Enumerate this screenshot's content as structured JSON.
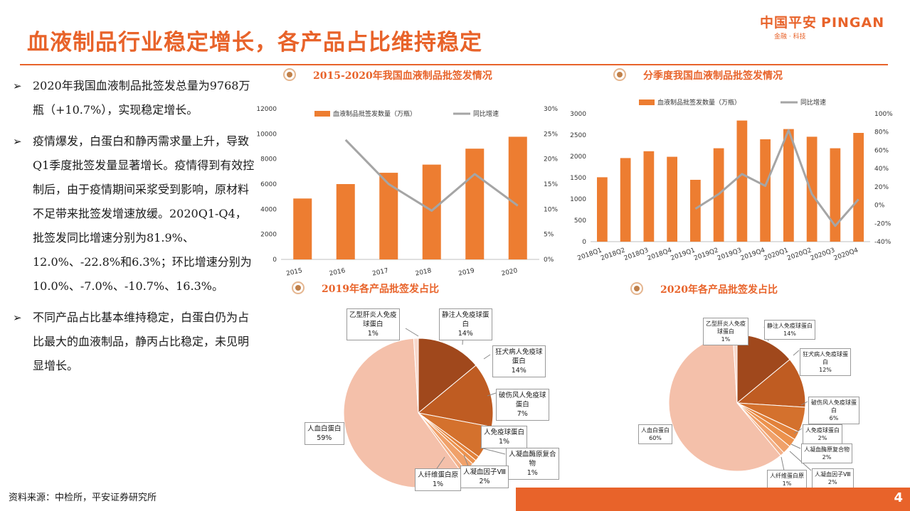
{
  "header": {
    "title": "血液制品行业稳定增长，各产品占比维持稳定",
    "logo_cn": "中国平安",
    "logo_en": "PINGAN",
    "logo_sub": "金融 · 科技"
  },
  "bullets": [
    "2020年我国血液制品批签发总量为9768万瓶（+10.7%），实现稳定增长。",
    "疫情爆发，白蛋白和静丙需求量上升，导致Q1季度批签发量显著增长。疫情得到有效控制后，由于疫情期间采浆受到影响，原材料不足带来批签发增速放缓。2020Q1-Q4，批签发同比增速分别为81.9%、12.0%、-22.8%和6.3%；环比增速分别为10.0%、-7.0%、-10.7%、16.3%。",
    "不同产品占比基本维持稳定，白蛋白仍为占比最大的血液制品，静丙占比稳定，未见明显增长。"
  ],
  "bullet_marker": "➢",
  "footer": {
    "source": "资料来源：中检所，平安证券研究所",
    "page": "4"
  },
  "colors": {
    "accent": "#e8632a",
    "bar": "#ed7d31",
    "line": "#a5a5a5"
  },
  "chart_data": [
    {
      "type": "bar",
      "title": "2015-2020年我国血液制品批签发情况",
      "categories": [
        "2015",
        "2016",
        "2017",
        "2018",
        "2019",
        "2020"
      ],
      "series": [
        {
          "name": "血液制品批签发数量（万瓶）",
          "axis": "left",
          "kind": "bar",
          "values": [
            4850,
            6000,
            6900,
            7550,
            8820,
            9768
          ]
        },
        {
          "name": "同比增速",
          "axis": "right",
          "kind": "line",
          "values": [
            null,
            23.8,
            15.0,
            9.7,
            17.0,
            10.7
          ]
        }
      ],
      "y_left": {
        "range": [
          0,
          12000
        ],
        "ticks": [
          "0",
          "2000",
          "4000",
          "6000",
          "8000",
          "10000",
          "12000"
        ]
      },
      "y_right": {
        "range": [
          0,
          30
        ],
        "ticks": [
          "0%",
          "5%",
          "10%",
          "15%",
          "20%",
          "25%",
          "30%"
        ]
      },
      "legend": "top"
    },
    {
      "type": "bar",
      "title": "分季度我国血液制品批签发情况",
      "categories": [
        "2018Q1",
        "2018Q2",
        "2018Q3",
        "2018Q4",
        "2019Q1",
        "2019Q2",
        "2019Q3",
        "2019Q4",
        "2020Q1",
        "2020Q2",
        "2020Q3",
        "2020Q4"
      ],
      "series": [
        {
          "name": "血液制品批签发数量（万瓶）",
          "axis": "left",
          "kind": "bar",
          "values": [
            1510,
            1960,
            2120,
            1990,
            1450,
            2190,
            2840,
            2400,
            2640,
            2460,
            2190,
            2550
          ]
        },
        {
          "name": "同比增速",
          "axis": "right",
          "kind": "line",
          "values": [
            null,
            null,
            null,
            null,
            -4,
            12,
            34,
            21,
            81.9,
            12.0,
            -22.8,
            6.3
          ]
        }
      ],
      "y_left": {
        "range": [
          0,
          3000
        ],
        "ticks": [
          "0",
          "500",
          "1000",
          "1500",
          "2000",
          "2500",
          "3000"
        ]
      },
      "y_right": {
        "range": [
          -40,
          100
        ],
        "ticks": [
          "-40%",
          "-20%",
          "0%",
          "20%",
          "40%",
          "60%",
          "80%",
          "100%"
        ]
      },
      "legend": "top"
    },
    {
      "type": "pie",
      "title": "2019年各产品批签发占比",
      "slices": [
        {
          "label": "静注人免疫球蛋白",
          "value": 14,
          "text": "14%",
          "color": "#a0481c"
        },
        {
          "label": "狂犬病人免疫球蛋白",
          "value": 14,
          "text": "14%",
          "color": "#bf5c22"
        },
        {
          "label": "破伤风人免疫球蛋白",
          "value": 7,
          "text": "7%",
          "color": "#d4712d"
        },
        {
          "label": "人免疫球蛋白",
          "value": 1,
          "text": "1%",
          "color": "#e2813a"
        },
        {
          "label": "人凝血酶原复合物",
          "value": 1,
          "text": "1%",
          "color": "#ec924d"
        },
        {
          "label": "人凝血因子Ⅷ",
          "value": 2,
          "text": "2%",
          "color": "#f0a16a"
        },
        {
          "label": "人纤维蛋白原",
          "value": 1,
          "text": "1%",
          "color": "#f3b189"
        },
        {
          "label": "人血白蛋白",
          "value": 59,
          "text": "59%",
          "color": "#f4c0aa"
        },
        {
          "label": "乙型肝炎人免疫球蛋白",
          "value": 1,
          "text": "1%",
          "color": "#f8d8cc"
        }
      ]
    },
    {
      "type": "pie",
      "title": "2020年各产品批签发占比",
      "slices": [
        {
          "label": "静注人免疫球蛋白",
          "value": 14,
          "text": "14%",
          "color": "#a0481c"
        },
        {
          "label": "狂犬病人免疫球蛋白",
          "value": 12,
          "text": "12%",
          "color": "#bf5c22"
        },
        {
          "label": "破伤风人免疫球蛋白",
          "value": 6,
          "text": "6%",
          "color": "#d4712d"
        },
        {
          "label": "人免疫球蛋白",
          "value": 2,
          "text": "2%",
          "color": "#e2813a"
        },
        {
          "label": "人凝血酶原复合物",
          "value": 2,
          "text": "2%",
          "color": "#ec924d"
        },
        {
          "label": "人凝血因子Ⅷ",
          "value": 2,
          "text": "2%",
          "color": "#f0a16a"
        },
        {
          "label": "人纤维蛋白原",
          "value": 1,
          "text": "1%",
          "color": "#f3b189"
        },
        {
          "label": "人血白蛋白",
          "value": 60,
          "text": "60%",
          "color": "#f4c0aa"
        },
        {
          "label": "乙型肝炎人免疫球蛋白",
          "value": 1,
          "text": "1%",
          "color": "#f8d8cc"
        }
      ]
    }
  ],
  "pie_labels": {
    "p2019": {
      "hbig": [
        "乙型肝炎人免疫",
        "球蛋白"
      ],
      "ivig": [
        "静注人免疫球蛋",
        "白"
      ],
      "rabies": [
        "狂犬病人免疫球",
        "蛋白"
      ],
      "tetanus": [
        "破伤风人免疫球",
        "蛋白"
      ],
      "ig": [
        "人免疫球蛋白"
      ],
      "pcc": [
        "人凝血酶原复合",
        "物"
      ],
      "f8": [
        "人凝血因子Ⅷ"
      ],
      "fib": [
        "人纤维蛋白原"
      ],
      "alb": [
        "人血白蛋白"
      ]
    },
    "p2020": {
      "hbig": [
        "乙型肝炎人免疫",
        "球蛋白"
      ],
      "ivig": [
        "静注人免疫球蛋白"
      ],
      "rabies": [
        "狂犬病人免疫球蛋",
        "白"
      ],
      "tetanus": [
        "破伤风人免疫球蛋",
        "白"
      ],
      "ig": [
        "人免疫球蛋白"
      ],
      "pcc": [
        "人凝血酶原复合物"
      ],
      "f8": [
        "人凝血因子Ⅷ"
      ],
      "fib": [
        "人纤维蛋白原"
      ],
      "alb": [
        "人血白蛋白"
      ]
    }
  }
}
